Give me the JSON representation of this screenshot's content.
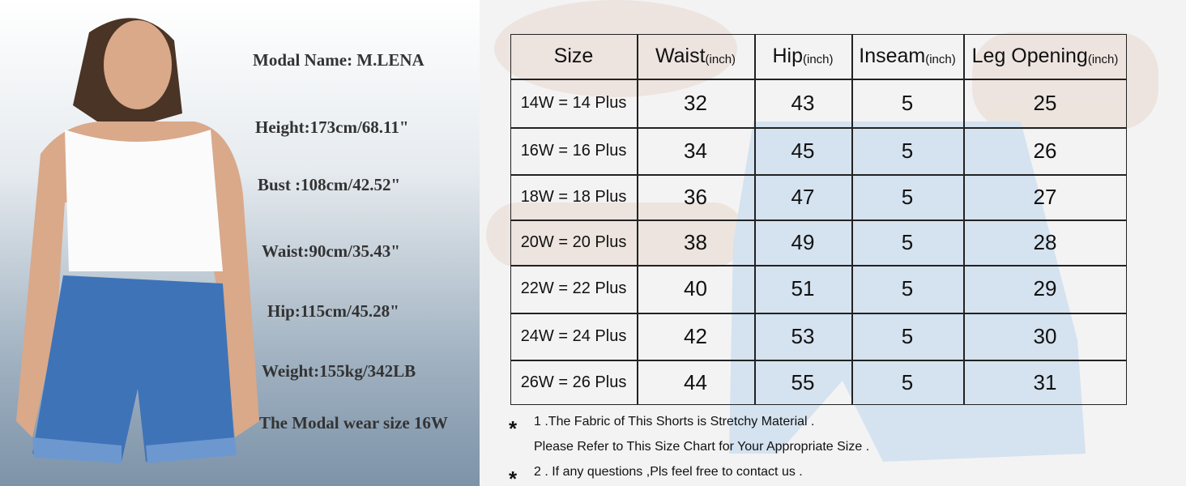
{
  "model": {
    "lines": [
      "Modal Name: M.LENA",
      "Height:173cm/68.11\"",
      "Bust :108cm/42.52\"",
      "Waist:90cm/35.43\"",
      "Hip:115cm/45.28\"",
      "Weight:155kg/342LB",
      "The Modal wear size 16W"
    ]
  },
  "table": {
    "header": [
      {
        "label": "Size"
      },
      {
        "label": "Waist",
        "unit": "(inch)"
      },
      {
        "label": "Hip",
        "unit": "(inch)"
      },
      {
        "label": "Inseam",
        "unit": "(inch)"
      },
      {
        "label": "Leg Opening",
        "unit": "(inch)"
      }
    ],
    "rows": [
      [
        "14W = 14 Plus",
        32,
        43,
        5,
        25
      ],
      [
        "16W = 16 Plus",
        34,
        45,
        5,
        26
      ],
      [
        "18W = 18 Plus",
        36,
        47,
        5,
        27
      ],
      [
        "20W = 20 Plus",
        38,
        49,
        5,
        28
      ],
      [
        "22W = 22 Plus",
        40,
        51,
        5,
        29
      ],
      [
        "24W = 24 Plus",
        42,
        53,
        5,
        30
      ],
      [
        "26W = 26 Plus",
        44,
        55,
        5,
        31
      ]
    ]
  },
  "notes": [
    {
      "marker": "*",
      "lines": [
        "1 .The Fabric of This Shorts is Stretchy Material .",
        "Please Refer to This Size Chart for Your Appropriate Size ."
      ]
    },
    {
      "marker": "*",
      "lines": [
        "2 . If any questions ,Pls feel free to contact us ."
      ]
    }
  ]
}
